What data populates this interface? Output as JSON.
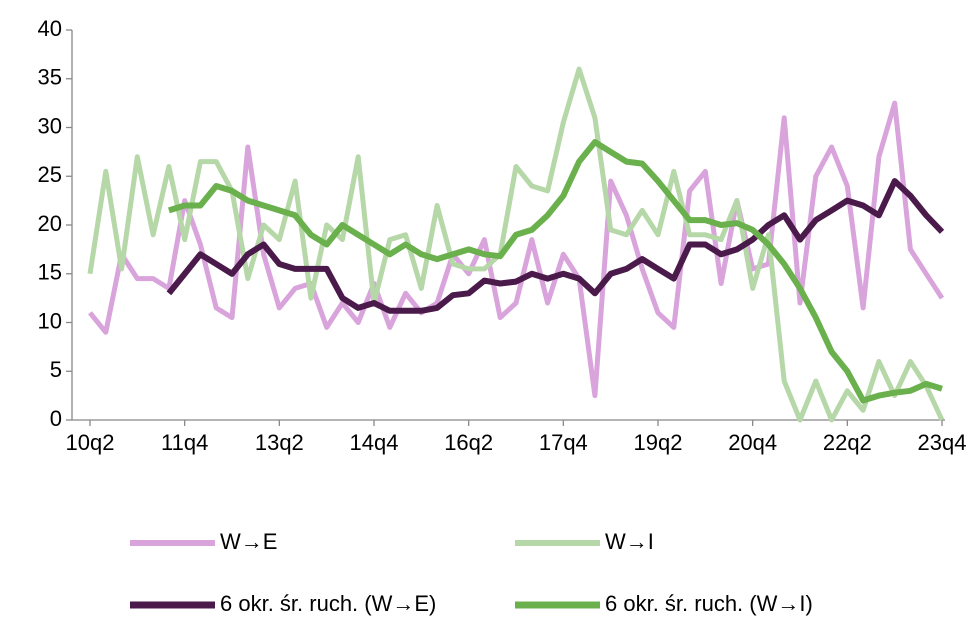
{
  "chart_data": {
    "type": "line",
    "categories": [
      "10q2",
      null,
      null,
      null,
      null,
      null,
      "11q4",
      null,
      null,
      null,
      null,
      null,
      "13q2",
      null,
      null,
      null,
      null,
      null,
      "14q4",
      null,
      null,
      null,
      null,
      null,
      "16q2",
      null,
      null,
      null,
      null,
      null,
      "17q4",
      null,
      null,
      null,
      null,
      null,
      "19q2",
      null,
      null,
      null,
      null,
      null,
      "20q4",
      null,
      null,
      null,
      null,
      null,
      "22q2",
      null,
      null,
      null,
      null,
      null,
      "23q4"
    ],
    "series": [
      {
        "name": "W→E",
        "color": "#d9a3dc",
        "values": [
          11,
          9,
          17,
          14.5,
          14.5,
          13.5,
          22.5,
          18,
          11.5,
          10.5,
          28,
          17,
          11.5,
          13.5,
          14,
          9.5,
          12,
          10,
          14,
          9.5,
          13,
          11,
          12,
          17,
          15,
          18.5,
          10.5,
          12,
          18.5,
          12,
          17,
          14.5,
          2.5,
          24.5,
          21,
          15.5,
          11,
          9.5,
          23.5,
          25.5,
          14,
          22.5,
          15.5,
          16,
          31,
          12,
          25,
          28,
          24,
          11.5,
          27,
          32.5,
          17.5,
          15,
          12.5
        ]
      },
      {
        "name": "W→I",
        "color": "#b6d7a8",
        "values": [
          15,
          25.5,
          15.5,
          27,
          19,
          26,
          18.5,
          26.5,
          26.5,
          23.5,
          14.5,
          20,
          18.5,
          24.5,
          12.5,
          20,
          18.5,
          27,
          12,
          18.5,
          19,
          13.5,
          22,
          16,
          15.5,
          15.5,
          17,
          26,
          24,
          23.5,
          30.5,
          36,
          31,
          19.5,
          19,
          21.5,
          19,
          25.5,
          19,
          19,
          18.5,
          22.5,
          13.5,
          19,
          4,
          0,
          4,
          0,
          3,
          1,
          6,
          2.5,
          6,
          3.5,
          0
        ]
      },
      {
        "name": "6 okr. śr. ruch. (W→E)",
        "color": "#4a1a4a",
        "values": [
          null,
          null,
          null,
          null,
          null,
          13,
          15,
          17,
          16,
          15,
          17,
          18,
          16,
          15.5,
          15.5,
          15.5,
          12.5,
          11.5,
          12,
          11.2,
          11.2,
          11.2,
          11.5,
          12.8,
          13,
          14.3,
          14,
          14.2,
          15,
          14.5,
          15,
          14.5,
          13,
          15,
          15.5,
          16.5,
          15.5,
          14.5,
          18,
          18,
          17,
          17.5,
          18.5,
          20,
          21,
          18.5,
          20.5,
          21.5,
          22.5,
          22,
          21,
          24.5,
          23,
          21,
          19.3
        ]
      },
      {
        "name": "6 okr. śr. ruch. (W→I)",
        "color": "#6ab04c",
        "values": [
          null,
          null,
          null,
          null,
          null,
          21.5,
          22,
          22,
          24,
          23.5,
          22.5,
          22,
          21.5,
          21,
          19,
          18,
          20,
          19,
          18,
          17,
          18,
          17,
          16.5,
          17,
          17.5,
          17,
          16.8,
          19,
          19.5,
          21,
          23,
          26.5,
          28.5,
          27.5,
          26.5,
          26.3,
          24.5,
          22.5,
          20.5,
          20.5,
          20,
          20.2,
          19.5,
          18,
          16,
          13.5,
          10.5,
          7,
          5,
          2,
          2.5,
          2.8,
          3,
          3.7,
          3.2
        ]
      }
    ],
    "ylim": [
      0,
      40
    ],
    "yticks": [
      0,
      5,
      10,
      15,
      20,
      25,
      30,
      35,
      40
    ]
  }
}
